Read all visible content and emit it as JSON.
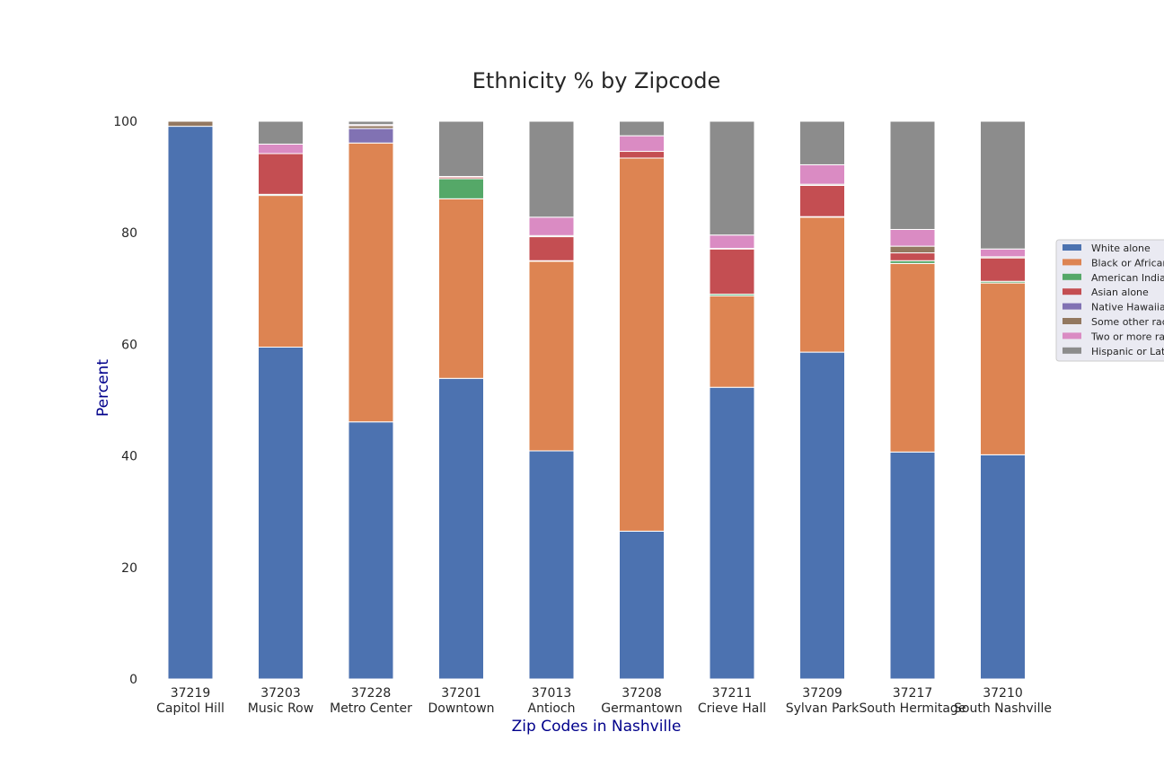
{
  "chart_data": {
    "type": "bar",
    "stacked": true,
    "title": "Ethnicity % by Zipcode",
    "xlabel": "Zip Codes in Nashville",
    "ylabel": "Percent",
    "ylim": [
      0,
      100
    ],
    "yticks": [
      0,
      20,
      40,
      60,
      80,
      100
    ],
    "grid": false,
    "legend_position": "right",
    "categories": [
      {
        "zip": "37219",
        "name": "Capitol Hill"
      },
      {
        "zip": "37203",
        "name": "Music Row"
      },
      {
        "zip": "37228",
        "name": "Metro Center"
      },
      {
        "zip": "37201",
        "name": "Downtown"
      },
      {
        "zip": "37013",
        "name": "Antioch"
      },
      {
        "zip": "37208",
        "name": "Germantown"
      },
      {
        "zip": "37211",
        "name": "Crieve Hall"
      },
      {
        "zip": "37209",
        "name": "Sylvan Park"
      },
      {
        "zip": "37217",
        "name": "South Hermitage"
      },
      {
        "zip": "37210",
        "name": "South Nashville"
      }
    ],
    "series": [
      {
        "name": "White alone",
        "color": "#4c72b0",
        "values": [
          99.1,
          59.5,
          46.1,
          53.9,
          40.9,
          26.5,
          52.3,
          58.6,
          40.7,
          40.2
        ]
      },
      {
        "name": "Black or African",
        "color": "#dd8452",
        "values": [
          0.0,
          27.2,
          50.0,
          32.2,
          34.0,
          66.9,
          16.4,
          24.2,
          33.8,
          30.8
        ]
      },
      {
        "name": "American Indian",
        "color": "#55a868",
        "values": [
          0.0,
          0.2,
          0.0,
          3.6,
          0.1,
          0.0,
          0.3,
          0.1,
          0.5,
          0.3
        ]
      },
      {
        "name": "Asian alone",
        "color": "#c44e52",
        "values": [
          0.0,
          7.3,
          0.0,
          0.3,
          4.3,
          1.2,
          8.1,
          5.6,
          1.4,
          4.2
        ]
      },
      {
        "name": "Native Hawaiian",
        "color": "#8172b3",
        "values": [
          0.0,
          0.0,
          2.6,
          0.0,
          0.0,
          0.0,
          0.0,
          0.0,
          0.0,
          0.0
        ]
      },
      {
        "name": "Some other race",
        "color": "#937860",
        "values": [
          0.9,
          0.0,
          0.5,
          0.0,
          0.2,
          0.0,
          0.1,
          0.2,
          1.2,
          0.2
        ]
      },
      {
        "name": "Two or more races",
        "color": "#da8bc3",
        "values": [
          0.0,
          1.7,
          0.2,
          0.1,
          3.3,
          2.8,
          2.4,
          3.5,
          3.0,
          1.4
        ]
      },
      {
        "name": "Hispanic or Latino",
        "color": "#8c8c8c",
        "values": [
          0.0,
          4.1,
          0.6,
          9.9,
          17.2,
          2.6,
          20.4,
          7.8,
          19.4,
          22.9
        ]
      }
    ]
  }
}
